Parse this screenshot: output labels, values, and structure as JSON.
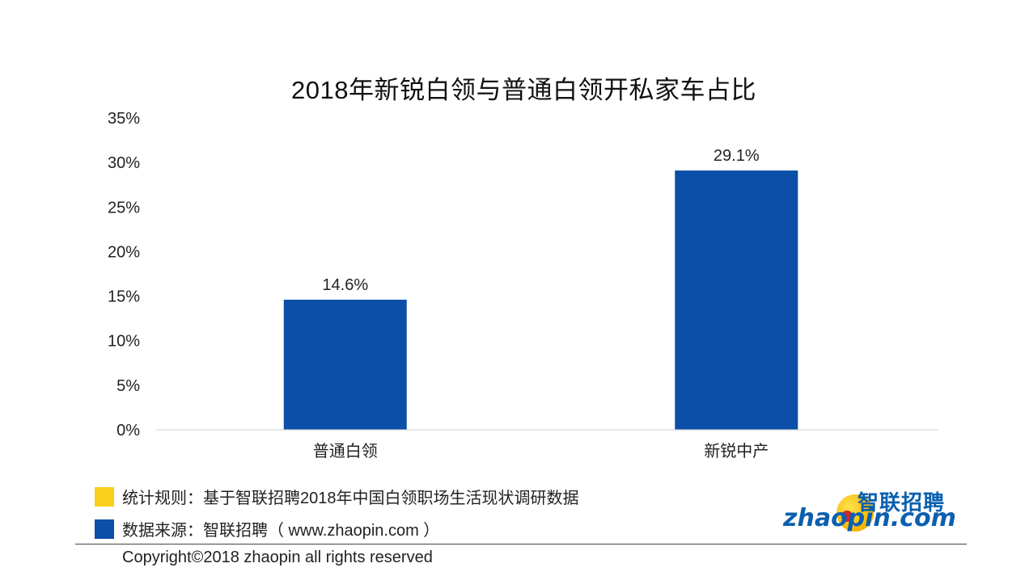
{
  "chart_data": {
    "type": "bar",
    "title": "2018年新锐白领与普通白领开私家车占比",
    "categories": [
      "普通白领",
      "新锐中产"
    ],
    "values": [
      14.6,
      29.1
    ],
    "data_labels": [
      "14.6%",
      "29.1%"
    ],
    "ylim": [
      0,
      35
    ],
    "yticks": [
      "0%",
      "5%",
      "10%",
      "15%",
      "20%",
      "25%",
      "30%",
      "35%"
    ],
    "xlabel": "",
    "ylabel": "",
    "grid": false,
    "bar_color": "#0b4fa8"
  },
  "notes": {
    "rule_label": "统计规则：基于智联招聘2018年中国白领职场生活现状调研数据",
    "source_label": "数据来源：智联招聘（ www.zhaopin.com ）",
    "rule_color": "#f9cf1a",
    "source_color": "#0b4fa8"
  },
  "footer": {
    "copyright": "Copyright©2018 zhaopin all rights reserved"
  },
  "logo": {
    "cn_text": "智联招聘",
    "en_text": "zhaopin.com"
  }
}
